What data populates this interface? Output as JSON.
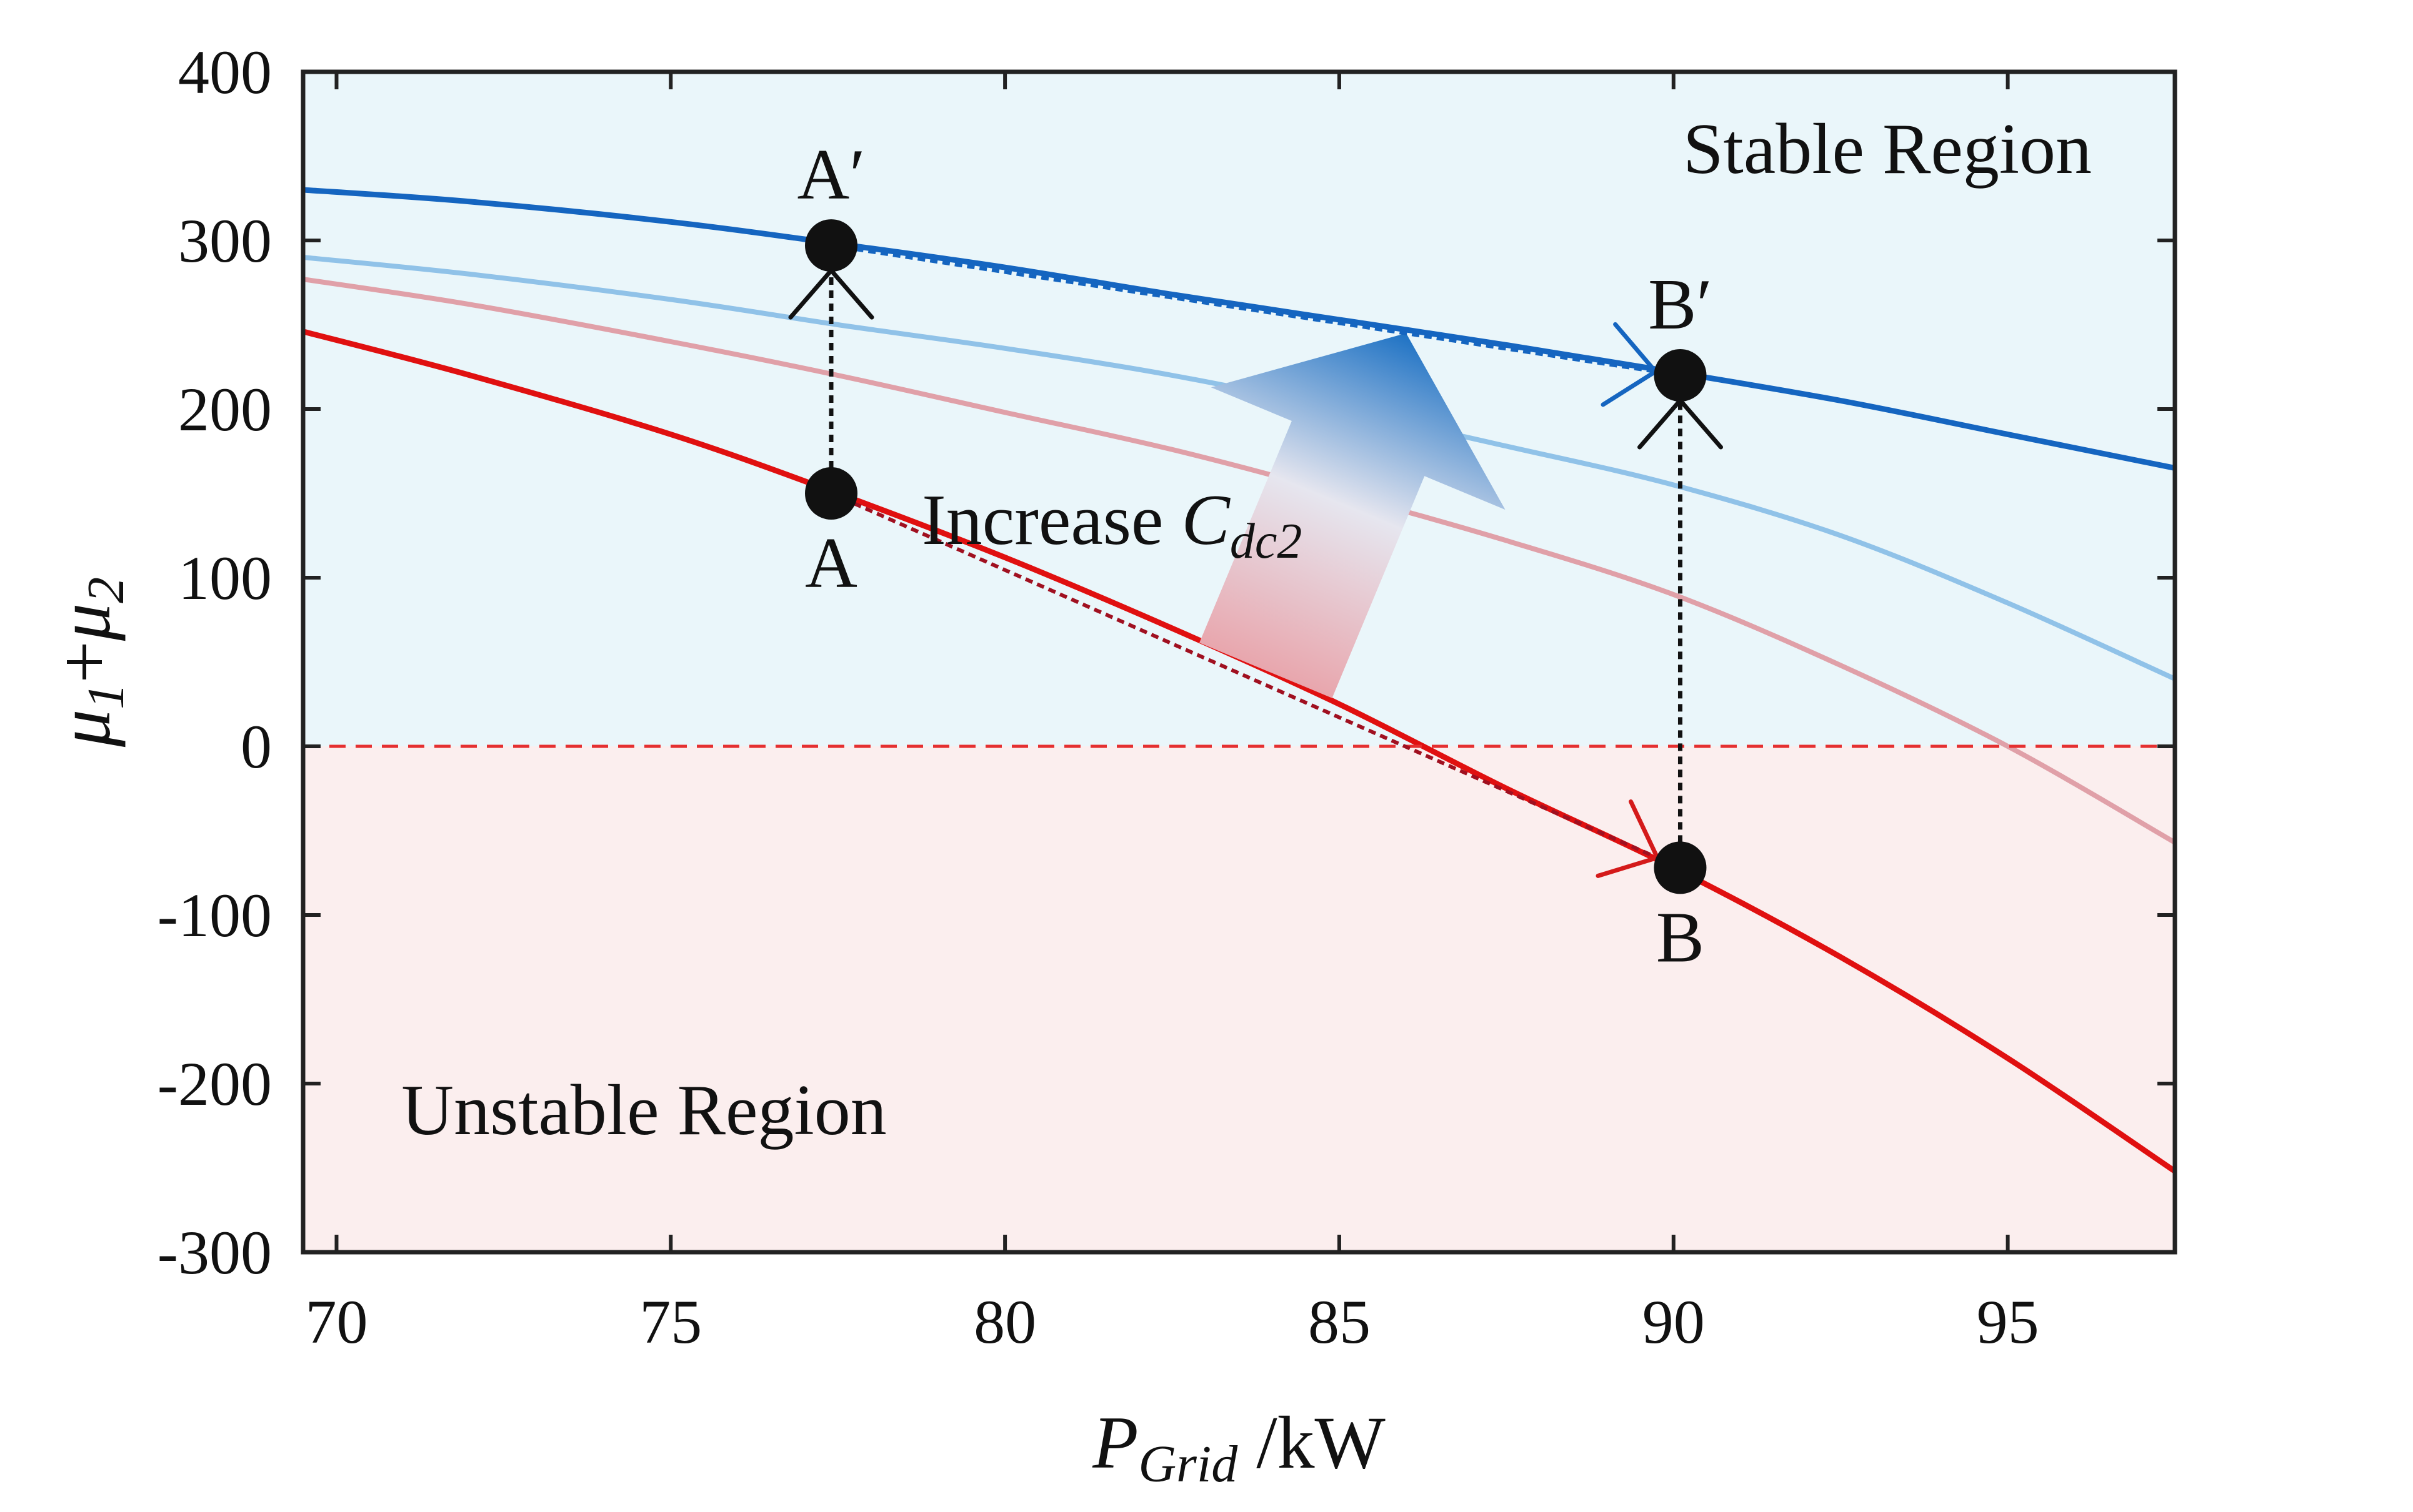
{
  "chart_data": {
    "type": "line",
    "title": "",
    "xlabel": {
      "main": "P",
      "sub": "Grid",
      "unit": " /kW"
    },
    "ylabel": {
      "mu": "μ",
      "sub1": "1",
      "plus": "+",
      "sub2": "2"
    },
    "xlim": [
      69.5,
      97.5
    ],
    "ylim": [
      -300,
      400
    ],
    "xticks": [
      70,
      75,
      80,
      85,
      90,
      95
    ],
    "yticks": [
      400,
      300,
      200,
      100,
      0,
      -100,
      -200,
      -300
    ],
    "grid": false,
    "stability_threshold": 0,
    "colors": {
      "stable_fill": "#eaf6fa",
      "unstable_fill": "#fbeeee",
      "threshold": "#e53030",
      "dark_blue": "#1565c0",
      "light_blue": "#90c2e8",
      "light_red": "#e0a0a8",
      "dark_red": "#e01010",
      "marker": "#111111"
    },
    "series": [
      {
        "name": "curve-dark-blue",
        "color_key": "dark_blue",
        "width": 9,
        "x": [
          69.5,
          72,
          75,
          77.5,
          80,
          82.5,
          85,
          87.5,
          90,
          92.5,
          95,
          97.5
        ],
        "y": [
          330,
          323,
          311,
          298,
          284,
          268,
          253,
          238,
          222,
          205,
          185,
          165
        ]
      },
      {
        "name": "curve-light-blue",
        "color_key": "light_blue",
        "width": 8,
        "x": [
          69.5,
          72,
          75,
          77.5,
          80,
          82.5,
          85,
          87.5,
          90,
          92.5,
          95,
          97.5
        ],
        "y": [
          290,
          280,
          265,
          250,
          236,
          220,
          200,
          178,
          155,
          125,
          85,
          40
        ]
      },
      {
        "name": "curve-light-red",
        "color_key": "light_red",
        "width": 8,
        "x": [
          69.5,
          72,
          75,
          77.5,
          80,
          82.5,
          85,
          87.5,
          90,
          92.5,
          95,
          97.5
        ],
        "y": [
          277,
          262,
          240,
          220,
          198,
          176,
          150,
          122,
          90,
          48,
          0,
          -57
        ]
      },
      {
        "name": "curve-dark-red",
        "color_key": "dark_red",
        "width": 9,
        "x": [
          69.5,
          72,
          75,
          77.5,
          80,
          82.5,
          85,
          87.5,
          90,
          92.5,
          95,
          97.5
        ],
        "y": [
          246,
          220,
          185,
          150,
          112,
          70,
          25,
          -25,
          -72,
          -125,
          -185,
          -252
        ]
      }
    ],
    "points": [
      {
        "label": "A",
        "x": 77.4,
        "y": 150,
        "label_pos": "below"
      },
      {
        "label": "A′",
        "x": 77.4,
        "y": 297,
        "label_pos": "above"
      },
      {
        "label": "B",
        "x": 90.1,
        "y": -72,
        "label_pos": "below"
      },
      {
        "label": "B′",
        "x": 90.1,
        "y": 220,
        "label_pos": "above"
      }
    ],
    "annotations": {
      "stable": {
        "text": "Stable Region",
        "x": 93.2,
        "y": 340
      },
      "unstable": {
        "text": "Unstable Region",
        "x": 74.6,
        "y": -230
      },
      "increase": {
        "text": "Increase ",
        "var": "C",
        "sub": "dc2",
        "x": 81.6,
        "y": 120
      }
    }
  }
}
